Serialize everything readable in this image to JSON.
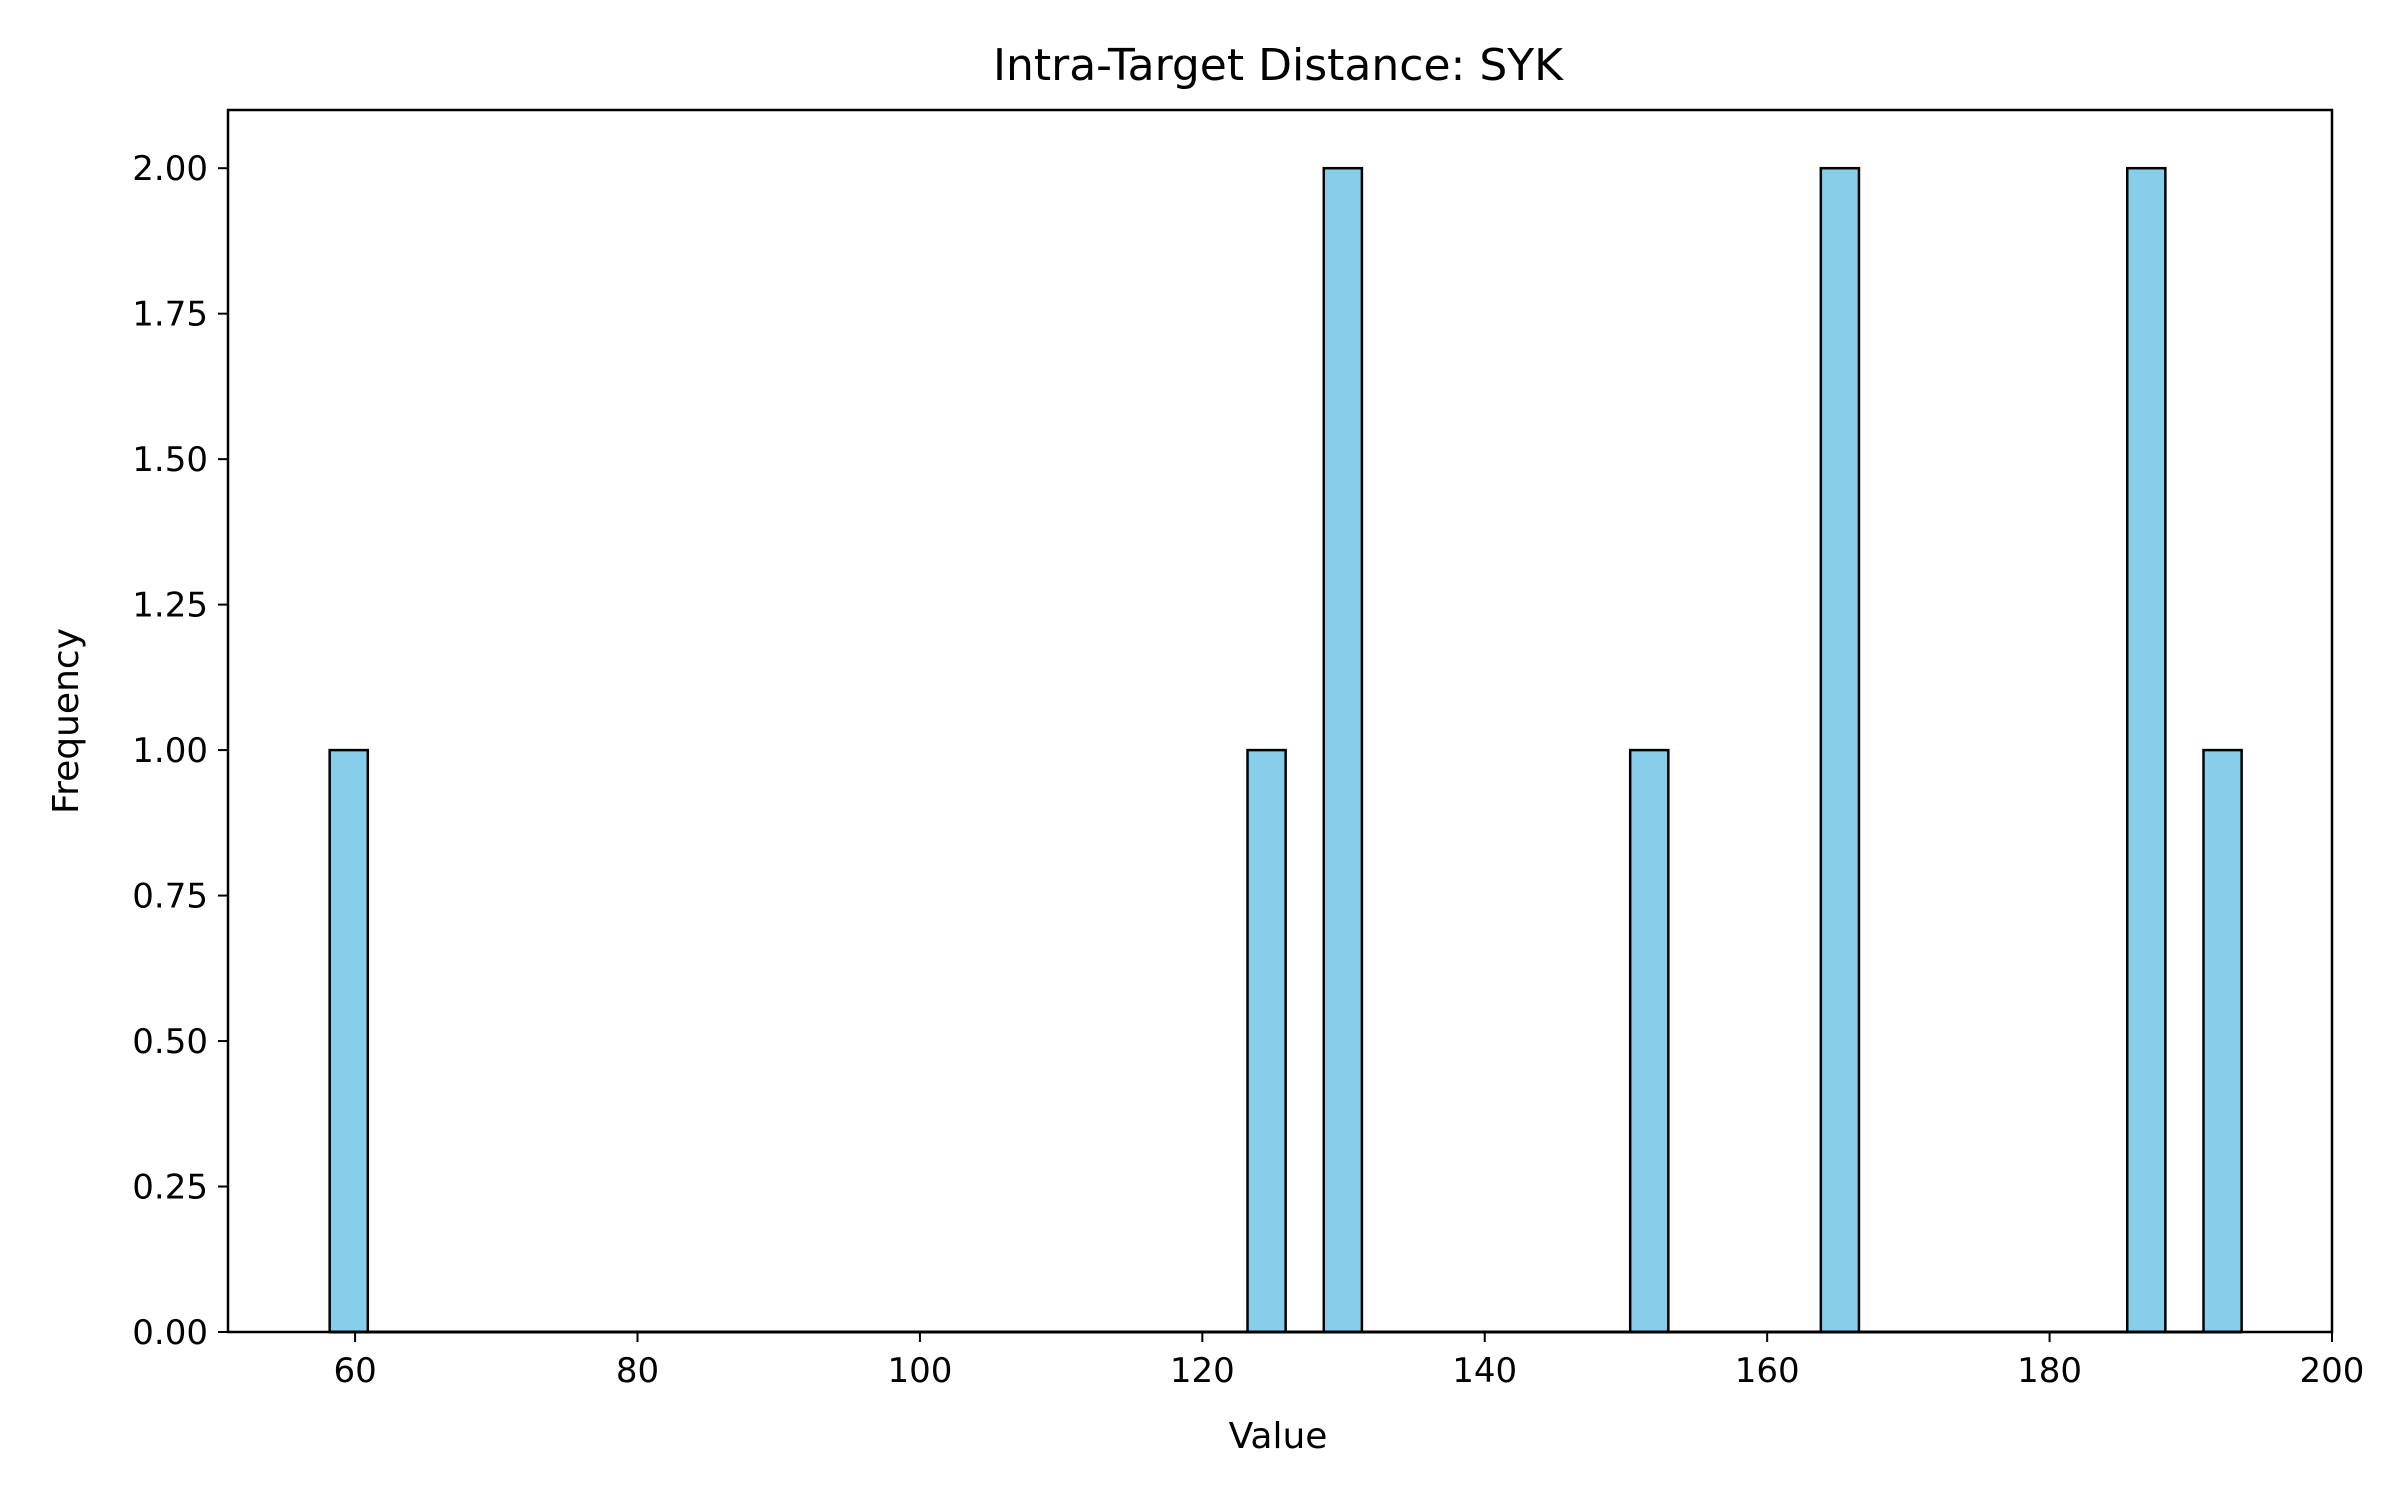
{
  "chart_data": {
    "type": "bar",
    "title": "Intra-Target Distance: SYK",
    "xlabel": "Value",
    "ylabel": "Frequency",
    "xlim": [
      51,
      200
    ],
    "ylim": [
      0,
      2.1
    ],
    "xticks": [
      60,
      80,
      100,
      120,
      140,
      160,
      180,
      200
    ],
    "xtick_labels": [
      "60",
      "80",
      "100",
      "120",
      "140",
      "160",
      "180",
      "200"
    ],
    "yticks": [
      0,
      0.25,
      0.5,
      0.75,
      1.0,
      1.25,
      1.5,
      1.75,
      2.0
    ],
    "ytick_labels": [
      "0.00",
      "0.25",
      "0.50",
      "0.75",
      "1.00",
      "1.25",
      "1.50",
      "1.75",
      "2.00"
    ],
    "bins": [
      {
        "start": 58.2,
        "end": 60.9,
        "count": 1
      },
      {
        "start": 123.2,
        "end": 125.9,
        "count": 1
      },
      {
        "start": 128.6,
        "end": 131.3,
        "count": 2
      },
      {
        "start": 150.3,
        "end": 153.0,
        "count": 1
      },
      {
        "start": 163.8,
        "end": 166.5,
        "count": 2
      },
      {
        "start": 185.5,
        "end": 188.2,
        "count": 2
      },
      {
        "start": 190.9,
        "end": 193.6,
        "count": 1
      }
    ],
    "grid": false,
    "bar_color": "#87CEEB",
    "edge_color": "#000000"
  }
}
